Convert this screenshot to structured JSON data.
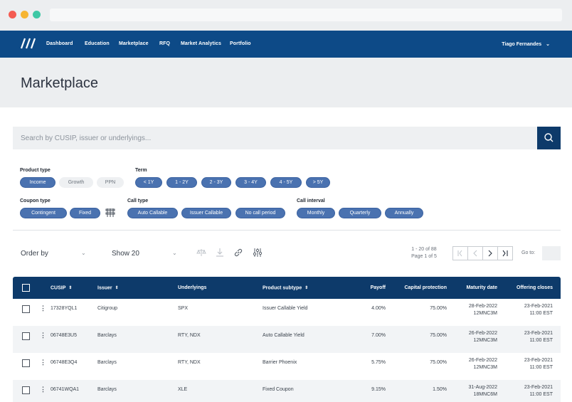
{
  "nav": {
    "items": [
      "Dashboard",
      "Education",
      "Marketplace",
      "RFQ",
      "Market Analytics",
      "Portfolio"
    ],
    "user": "Tiago Fernandes"
  },
  "page": {
    "title": "Marketplace"
  },
  "search": {
    "placeholder": "Search by CUSIP, issuer or underlyings..."
  },
  "filters": {
    "product_type": {
      "label": "Product type",
      "options": [
        "Income",
        "Growth",
        "PPN"
      ]
    },
    "term": {
      "label": "Term",
      "options": [
        "< 1Y",
        "1 - 2Y",
        "2 - 3Y",
        "3 - 4Y",
        "4 - 5Y",
        "> 5Y"
      ]
    },
    "coupon_type": {
      "label": "Coupon type",
      "options": [
        "Contingent",
        "Fixed"
      ]
    },
    "call_type": {
      "label": "Call type",
      "options": [
        "Auto Callable",
        "Issuer Callable",
        "No call period"
      ]
    },
    "call_interval": {
      "label": "Call interval",
      "options": [
        "Monthly",
        "Quarterly",
        "Annually"
      ]
    }
  },
  "toolbar": {
    "order_by": "Order by",
    "show": "Show 20",
    "page_range": "1 - 20 of 88",
    "page_of": "Page 1 of 5",
    "goto": "Go to:"
  },
  "table": {
    "headers": {
      "cusip": "CUSIP",
      "issuer": "Issuer",
      "underlyings": "Underlyings",
      "subtype": "Product subtype",
      "payoff": "Payoff",
      "capital": "Capital protection",
      "maturity": "Maturity date",
      "closes": "Offering closes"
    },
    "rows": [
      {
        "cusip": "17328YQL1",
        "issuer": "Citigroup",
        "underlyings": "SPX",
        "subtype": "Issuer Callable Yield",
        "payoff": "4.00%",
        "capital": "75.00%",
        "maturity_date": "28-Feb-2022",
        "maturity_term": "12MNC3M",
        "close_date": "23-Feb-2021",
        "close_time": "11:00 EST"
      },
      {
        "cusip": "06748E3U5",
        "issuer": "Barclays",
        "underlyings": "RTY, NDX",
        "subtype": "Auto Callable Yield",
        "payoff": "7.00%",
        "capital": "75.00%",
        "maturity_date": "26-Feb-2022",
        "maturity_term": "12MNC3M",
        "close_date": "23-Feb-2021",
        "close_time": "11:00 EST"
      },
      {
        "cusip": "06748E3Q4",
        "issuer": "Barclays",
        "underlyings": "RTY, NDX",
        "subtype": "Barrier Phoenix",
        "payoff": "5.75%",
        "capital": "75.00%",
        "maturity_date": "26-Feb-2022",
        "maturity_term": "12MNC3M",
        "close_date": "23-Feb-2021",
        "close_time": "11:00 EST"
      },
      {
        "cusip": "06741WQA1",
        "issuer": "Barclays",
        "underlyings": "XLE",
        "subtype": "Fixed Coupon",
        "payoff": "9.15%",
        "capital": "1.50%",
        "maturity_date": "31-Aug-2022",
        "maturity_term": "18MNC6M",
        "close_date": "23-Feb-2021",
        "close_time": "11:00 EST"
      }
    ]
  }
}
